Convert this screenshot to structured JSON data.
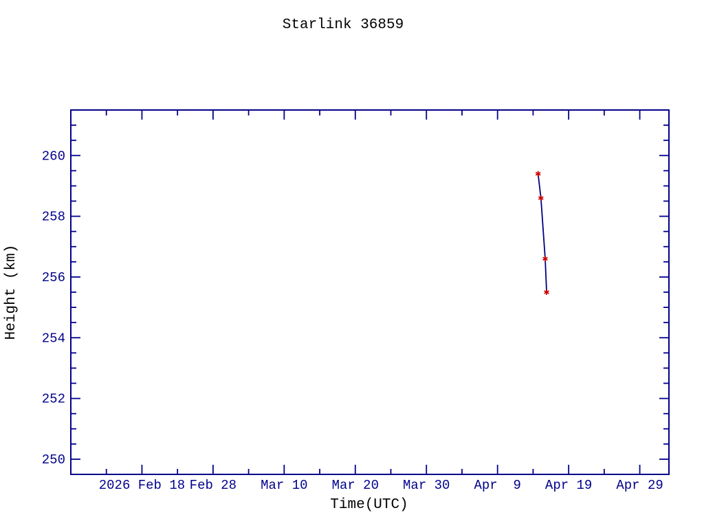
{
  "page": {
    "title": "Starlink 36859"
  },
  "chart_data": {
    "type": "line",
    "title": "Starlink 36859",
    "xlabel": "Time(UTC)",
    "ylabel": "Height (km)",
    "grid": false,
    "legend": "none",
    "colors": {
      "text": "#00008b",
      "axis": "#00008b",
      "line": "#000080",
      "marker": "#cc0000"
    },
    "x_axis": {
      "unit": "days since 2026 Feb 8",
      "range_days": [
        0,
        84.1
      ],
      "major_ticks": [
        {
          "day": 10,
          "label": "2026 Feb 18"
        },
        {
          "day": 20,
          "label": "Feb 28"
        },
        {
          "day": 30,
          "label": "Mar 10"
        },
        {
          "day": 40,
          "label": "Mar 20"
        },
        {
          "day": 50,
          "label": "Mar 30"
        },
        {
          "day": 60,
          "label": "Apr  9"
        },
        {
          "day": 70,
          "label": "Apr 19"
        },
        {
          "day": 80,
          "label": "Apr 29"
        }
      ],
      "minor_tick_days": [
        5,
        15,
        25,
        35,
        45,
        55,
        65,
        75
      ]
    },
    "y_axis": {
      "unit": "km",
      "range_km": [
        249.5,
        261.5
      ],
      "major_ticks": [
        250,
        252,
        254,
        256,
        258,
        260
      ],
      "minor_step_km": 0.5
    },
    "series": [
      {
        "name": "height",
        "marker": "asterisk",
        "points": [
          {
            "date": "2026 Apr 14.6",
            "day": 65.7,
            "height_km": 259.4
          },
          {
            "date": "2026 Apr 15.1",
            "day": 66.1,
            "height_km": 258.6
          },
          {
            "date": "2026 Apr 15.7",
            "day": 66.7,
            "height_km": 256.6
          },
          {
            "date": "2026 Apr 15.9",
            "day": 66.9,
            "height_km": 255.5
          }
        ]
      }
    ]
  }
}
